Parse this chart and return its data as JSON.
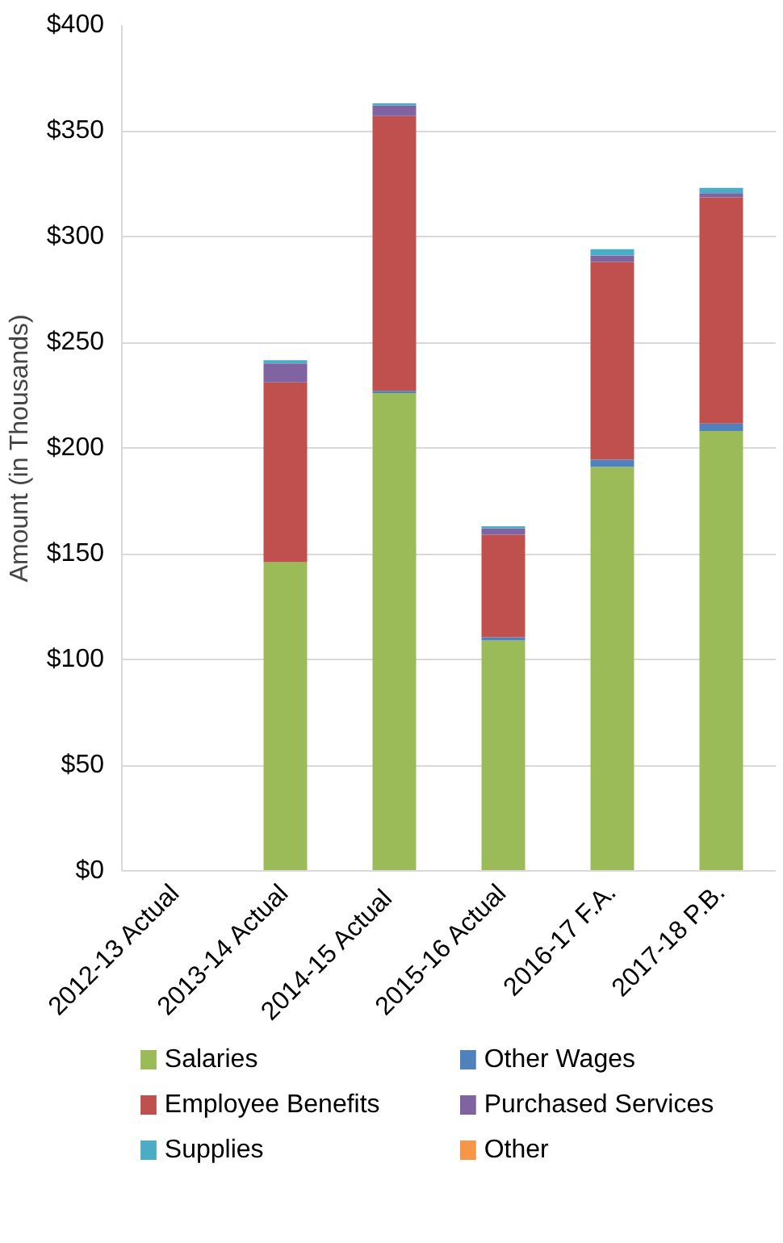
{
  "chart_data": {
    "type": "bar",
    "stacked": true,
    "ylabel": "Amount (in Thousands)",
    "categories": [
      "2012-13 Actual",
      "2013-14 Actual",
      "2014-15  Actual",
      "2015-16 Actual",
      "2016-17 F.A.",
      "2017-18 P.B."
    ],
    "series": [
      {
        "name": "Salaries",
        "color": "#9bbb59",
        "values": [
          0,
          146,
          226,
          109,
          191,
          208
        ]
      },
      {
        "name": "Other Wages",
        "color": "#4f81bd",
        "values": [
          0,
          0,
          1,
          1.5,
          3.5,
          3.5
        ]
      },
      {
        "name": "Employee Benefits",
        "color": "#c0504d",
        "values": [
          0,
          85,
          130,
          48.5,
          93.5,
          107
        ]
      },
      {
        "name": "Purchased Services",
        "color": "#8064a2",
        "values": [
          0,
          9,
          5,
          3,
          3,
          2
        ]
      },
      {
        "name": "Supplies",
        "color": "#4bacc6",
        "values": [
          0,
          1.5,
          1,
          1,
          3,
          2.5
        ]
      },
      {
        "name": "Other",
        "color": "#f79646",
        "values": [
          0,
          0,
          0,
          0,
          0,
          0
        ]
      }
    ],
    "ylim": [
      0,
      400
    ],
    "yticks": [
      {
        "value": 0,
        "label": "$0"
      },
      {
        "value": 50,
        "label": "$50"
      },
      {
        "value": 100,
        "label": "$100"
      },
      {
        "value": 150,
        "label": "$150"
      },
      {
        "value": 200,
        "label": "$200"
      },
      {
        "value": 250,
        "label": "$250"
      },
      {
        "value": 300,
        "label": "$300"
      },
      {
        "value": 350,
        "label": "$350"
      },
      {
        "value": 400,
        "label": "$400"
      }
    ],
    "grid": "y",
    "legend": "bottom"
  }
}
